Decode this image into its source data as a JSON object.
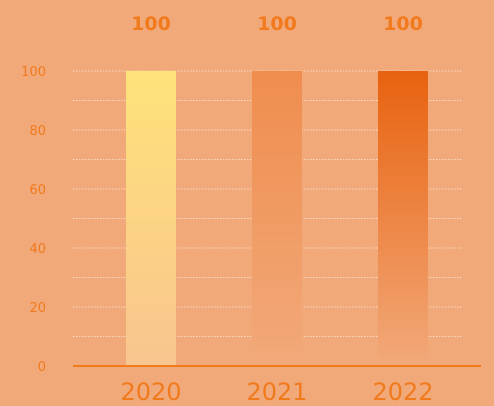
{
  "chart_data": {
    "type": "bar",
    "categories": [
      "2020",
      "2021",
      "2022"
    ],
    "values": [
      100,
      100,
      100
    ],
    "data_labels": [
      "100",
      "100",
      "100"
    ],
    "ylim": [
      0,
      100
    ],
    "yticks": [
      0,
      20,
      40,
      60,
      80,
      100
    ],
    "grid": true,
    "colors": {
      "background": "#f2a97a",
      "accent": "#f07a1c",
      "bar_tops": [
        "#ffe27a",
        "#ef8d4e",
        "#e8620f"
      ],
      "bar_bottoms": [
        "#f8c58f",
        "#f2a97a",
        "#f2a97a"
      ]
    }
  }
}
